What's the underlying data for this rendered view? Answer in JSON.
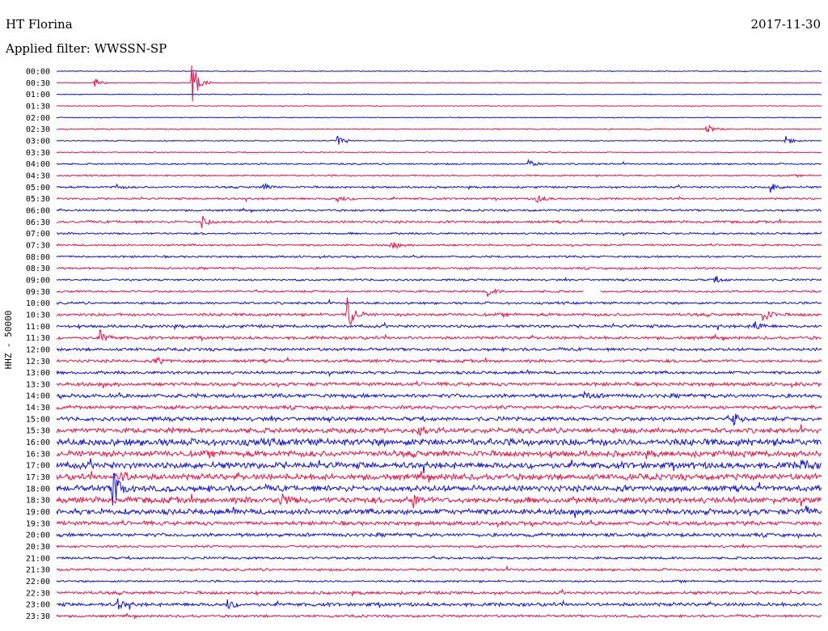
{
  "header": {
    "station": "HT Florina",
    "date": "2017-11-30",
    "filter": "Applied filter: WWSSN-SP"
  },
  "chart_data": {
    "type": "line",
    "title": "HT Florina",
    "ylabel": "HHZ - 50000",
    "row_labels": [
      "00:00",
      "00:30",
      "01:00",
      "01:30",
      "02:00",
      "02:30",
      "03:00",
      "03:30",
      "04:00",
      "04:30",
      "05:00",
      "05:30",
      "06:00",
      "06:30",
      "07:00",
      "07:30",
      "08:00",
      "08:30",
      "09:00",
      "09:30",
      "10:00",
      "10:30",
      "11:00",
      "11:30",
      "12:00",
      "12:30",
      "13:00",
      "13:30",
      "14:00",
      "14:30",
      "15:00",
      "15:30",
      "16:00",
      "16:30",
      "17:00",
      "17:30",
      "18:00",
      "18:30",
      "19:00",
      "19:30",
      "20:00",
      "20:30",
      "21:00",
      "21:30",
      "22:00",
      "22:30",
      "23:00",
      "23:30"
    ],
    "colors": {
      "even": "#1010dd",
      "odd": "#ee1144"
    },
    "noise_level": [
      0.4,
      0.4,
      0.4,
      0.4,
      0.4,
      0.5,
      0.5,
      0.5,
      0.8,
      0.8,
      1.0,
      1.0,
      1.0,
      1.2,
      1.0,
      1.0,
      1.0,
      1.0,
      1.0,
      1.0,
      1.2,
      1.5,
      1.5,
      1.5,
      1.5,
      1.5,
      1.5,
      1.8,
      2.0,
      1.8,
      2.0,
      2.5,
      3.5,
      3.0,
      3.2,
      3.0,
      3.0,
      3.0,
      2.8,
      2.0,
      1.8,
      1.2,
      1.2,
      1.2,
      1.0,
      1.5,
      1.8,
      1.2
    ],
    "events": [
      {
        "row": 1,
        "minute": 1.5,
        "amplitude": 5
      },
      {
        "row": 1,
        "minute": 5.3,
        "amplitude": 30
      },
      {
        "row": 5,
        "minute": 25.5,
        "amplitude": 8
      },
      {
        "row": 6,
        "minute": 11.0,
        "amplitude": 9
      },
      {
        "row": 6,
        "minute": 28.6,
        "amplitude": 6
      },
      {
        "row": 8,
        "minute": 18.5,
        "amplitude": 5
      },
      {
        "row": 10,
        "minute": 2.3,
        "amplitude": 4
      },
      {
        "row": 10,
        "minute": 8.1,
        "amplitude": 4
      },
      {
        "row": 10,
        "minute": 28.0,
        "amplitude": 6
      },
      {
        "row": 11,
        "minute": 11.0,
        "amplitude": 5
      },
      {
        "row": 11,
        "minute": 18.8,
        "amplitude": 7
      },
      {
        "row": 13,
        "minute": 5.7,
        "amplitude": 8
      },
      {
        "row": 15,
        "minute": 13.1,
        "amplitude": 5
      },
      {
        "row": 18,
        "minute": 25.8,
        "amplitude": 5
      },
      {
        "row": 19,
        "minute": 16.9,
        "amplitude": 6
      },
      {
        "row": 21,
        "minute": 11.4,
        "amplitude": 22
      },
      {
        "row": 21,
        "minute": 27.7,
        "amplitude": 10
      },
      {
        "row": 22,
        "minute": 27.3,
        "amplitude": 8
      },
      {
        "row": 23,
        "minute": 1.7,
        "amplitude": 9
      },
      {
        "row": 25,
        "minute": 3.9,
        "amplitude": 6
      },
      {
        "row": 28,
        "minute": 20.7,
        "amplitude": 5
      },
      {
        "row": 30,
        "minute": 26.5,
        "amplitude": 9
      },
      {
        "row": 31,
        "minute": 14.2,
        "amplitude": 6
      },
      {
        "row": 34,
        "minute": 29.2,
        "amplitude": 8
      },
      {
        "row": 35,
        "minute": 2.5,
        "amplitude": 8
      },
      {
        "row": 36,
        "minute": 2.2,
        "amplitude": 26
      },
      {
        "row": 37,
        "minute": 8.8,
        "amplitude": 10
      },
      {
        "row": 37,
        "minute": 14.0,
        "amplitude": 8
      },
      {
        "row": 38,
        "minute": 29.4,
        "amplitude": 6
      },
      {
        "row": 46,
        "minute": 2.4,
        "amplitude": 6
      },
      {
        "row": 46,
        "minute": 6.7,
        "amplitude": 6
      }
    ],
    "gaps": [
      {
        "row": 19,
        "from_minute": 20.7,
        "to_minute": 21.3
      }
    ],
    "x_range_minutes": [
      0,
      30
    ]
  }
}
